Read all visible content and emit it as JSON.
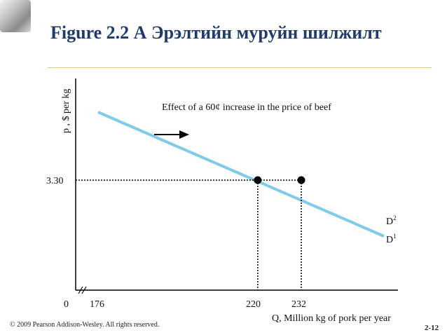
{
  "slide": {
    "title": "Figure 2.2  А Эрэлтийн муруйн шилжилт",
    "footer": "© 2009 Pearson Addison-Wesley. All rights reserved.",
    "page_number": "2-12"
  },
  "chart_data": {
    "type": "line",
    "ylabel": "p , $ per kg",
    "xlabel": "Q, Million kg of pork per year",
    "annotation": "Effect of a 60¢ increase in the price of beef",
    "x_ticks": [
      "0",
      "176",
      "220",
      "232"
    ],
    "y_ticks": [
      "3.30"
    ],
    "axis_break": true,
    "series": [
      {
        "name": "D",
        "sup": "1",
        "color": "#7ecbea"
      },
      {
        "name": "D",
        "sup": "2",
        "color": "#7ecbea"
      }
    ],
    "points": [
      {
        "q": 220,
        "p": 3.3
      },
      {
        "q": 232,
        "p": 3.3
      }
    ]
  }
}
